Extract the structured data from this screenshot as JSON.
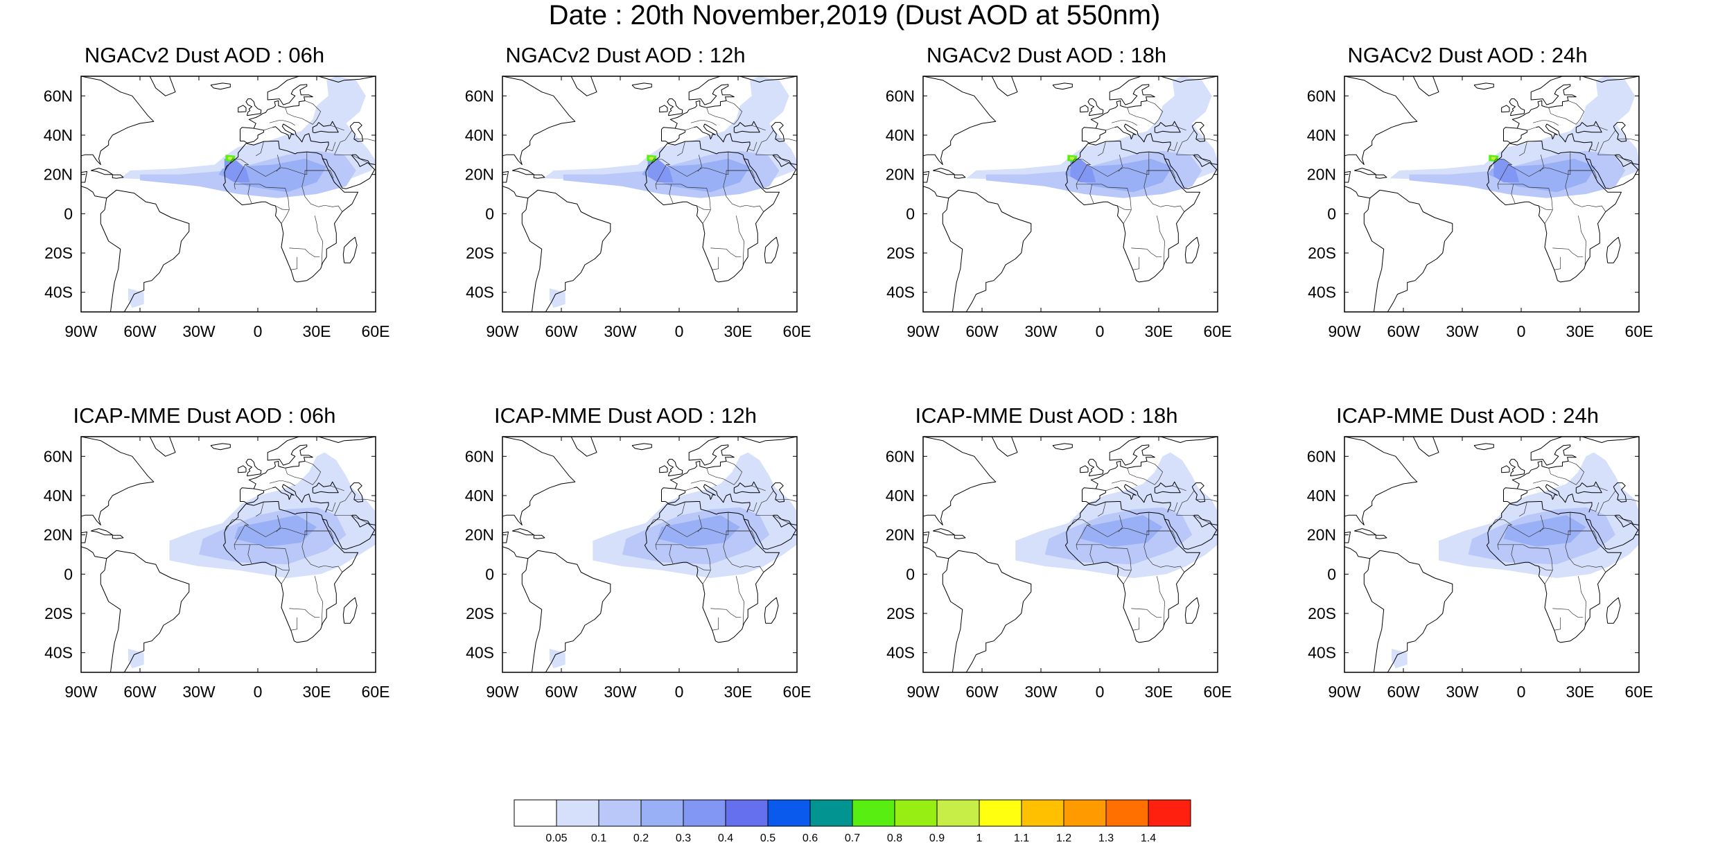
{
  "figure_title": "Date : 20th November,2019 (Dust AOD at 550nm)",
  "lon_ticks": [
    "90W",
    "60W",
    "30W",
    "0",
    "30E",
    "60E"
  ],
  "lat_ticks": [
    "60N",
    "40N",
    "20N",
    "0",
    "20S",
    "40S"
  ],
  "extent": {
    "lon": [
      -90,
      60
    ],
    "lat": [
      -50,
      70
    ]
  },
  "panels": [
    {
      "title": "NGACv2 Dust AOD : 06h",
      "model": "NGACv2",
      "hour": "06h"
    },
    {
      "title": "NGACv2 Dust AOD : 12h",
      "model": "NGACv2",
      "hour": "12h"
    },
    {
      "title": "NGACv2 Dust AOD : 18h",
      "model": "NGACv2",
      "hour": "18h"
    },
    {
      "title": "NGACv2 Dust AOD : 24h",
      "model": "NGACv2",
      "hour": "24h"
    },
    {
      "title": "ICAP-MME Dust AOD : 06h",
      "model": "ICAP-MME",
      "hour": "06h"
    },
    {
      "title": "ICAP-MME Dust AOD : 12h",
      "model": "ICAP-MME",
      "hour": "12h"
    },
    {
      "title": "ICAP-MME Dust AOD : 18h",
      "model": "ICAP-MME",
      "hour": "18h"
    },
    {
      "title": "ICAP-MME Dust AOD : 24h",
      "model": "ICAP-MME",
      "hour": "24h"
    }
  ],
  "colorbar": {
    "labels": [
      "0.05",
      "0.1",
      "0.2",
      "0.3",
      "0.4",
      "0.5",
      "0.6",
      "0.7",
      "0.8",
      "0.9",
      "1",
      "1.1",
      "1.2",
      "1.3",
      "1.4"
    ],
    "colors": [
      "#ffffff",
      "#d6e0fb",
      "#b9c8f8",
      "#99b0f6",
      "#8296f4",
      "#6470ee",
      "#0b5aee",
      "#029490",
      "#58ee12",
      "#96ee12",
      "#c6ee46",
      "#ffff10",
      "#ffc000",
      "#ff9a00",
      "#ff7000",
      "#ff2010"
    ]
  }
}
